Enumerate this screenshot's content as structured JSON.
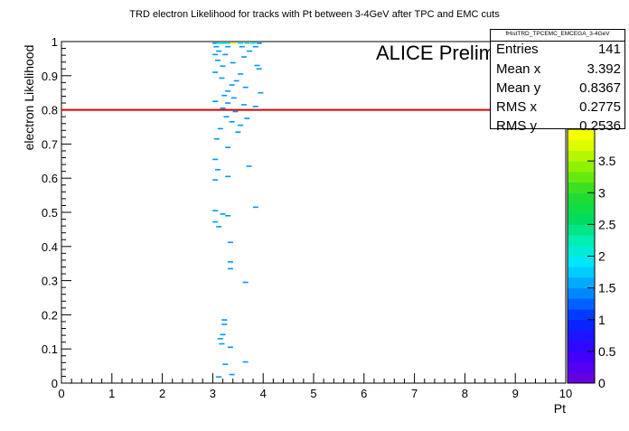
{
  "chart_data": {
    "type": "heatmap",
    "title": "TRD electron Likelihood for tracks with Pt between 3-4GeV after TPC and EMC cuts",
    "xlabel": "Pt",
    "ylabel": "electron Likelihood",
    "xlim": [
      0,
      10
    ],
    "ylim": [
      0,
      1
    ],
    "x_ticks": [
      "0",
      "1",
      "2",
      "3",
      "4",
      "5",
      "6",
      "7",
      "8",
      "9",
      "10"
    ],
    "y_ticks": [
      "0",
      "0.1",
      "0.2",
      "0.3",
      "0.4",
      "0.5",
      "0.6",
      "0.7",
      "0.8",
      "0.9",
      "1"
    ],
    "cut_line": {
      "y": 0.8,
      "color": "#e00000"
    },
    "colorbar": {
      "range": [
        0,
        4
      ],
      "ticks": [
        "0",
        "0.5",
        "1",
        "1.5",
        "2",
        "2.5",
        "3",
        "3.5"
      ]
    },
    "points": [
      {
        "x": 3.05,
        "y": 0.995,
        "c": 1
      },
      {
        "x": 3.12,
        "y": 0.995,
        "c": 2
      },
      {
        "x": 3.2,
        "y": 0.995,
        "c": 2
      },
      {
        "x": 3.3,
        "y": 0.995,
        "c": 2
      },
      {
        "x": 3.42,
        "y": 0.995,
        "c": 4
      },
      {
        "x": 3.55,
        "y": 0.995,
        "c": 2
      },
      {
        "x": 3.68,
        "y": 0.995,
        "c": 2
      },
      {
        "x": 3.8,
        "y": 0.995,
        "c": 2
      },
      {
        "x": 3.92,
        "y": 0.995,
        "c": 1
      },
      {
        "x": 3.07,
        "y": 0.985,
        "c": 1
      },
      {
        "x": 3.3,
        "y": 0.985,
        "c": 1
      },
      {
        "x": 3.58,
        "y": 0.985,
        "c": 1
      },
      {
        "x": 3.85,
        "y": 0.985,
        "c": 1
      },
      {
        "x": 3.12,
        "y": 0.972,
        "c": 1
      },
      {
        "x": 3.73,
        "y": 0.972,
        "c": 1
      },
      {
        "x": 3.05,
        "y": 0.962,
        "c": 1
      },
      {
        "x": 3.25,
        "y": 0.962,
        "c": 1
      },
      {
        "x": 3.62,
        "y": 0.955,
        "c": 1
      },
      {
        "x": 3.1,
        "y": 0.945,
        "c": 1
      },
      {
        "x": 3.4,
        "y": 0.938,
        "c": 1
      },
      {
        "x": 3.2,
        "y": 0.928,
        "c": 1
      },
      {
        "x": 3.88,
        "y": 0.93,
        "c": 1
      },
      {
        "x": 3.92,
        "y": 0.92,
        "c": 1
      },
      {
        "x": 3.05,
        "y": 0.91,
        "c": 1
      },
      {
        "x": 3.55,
        "y": 0.905,
        "c": 1
      },
      {
        "x": 3.18,
        "y": 0.893,
        "c": 1
      },
      {
        "x": 3.47,
        "y": 0.885,
        "c": 1
      },
      {
        "x": 3.38,
        "y": 0.873,
        "c": 1
      },
      {
        "x": 3.65,
        "y": 0.866,
        "c": 1
      },
      {
        "x": 3.3,
        "y": 0.855,
        "c": 1
      },
      {
        "x": 3.95,
        "y": 0.85,
        "c": 1
      },
      {
        "x": 3.23,
        "y": 0.842,
        "c": 1
      },
      {
        "x": 3.42,
        "y": 0.835,
        "c": 1
      },
      {
        "x": 3.05,
        "y": 0.825,
        "c": 1
      },
      {
        "x": 3.3,
        "y": 0.82,
        "c": 1
      },
      {
        "x": 3.62,
        "y": 0.815,
        "c": 1
      },
      {
        "x": 3.85,
        "y": 0.81,
        "c": 1
      },
      {
        "x": 3.2,
        "y": 0.805,
        "c": 1
      },
      {
        "x": 3.45,
        "y": 0.795,
        "c": 1
      },
      {
        "x": 3.27,
        "y": 0.78,
        "c": 1
      },
      {
        "x": 3.68,
        "y": 0.775,
        "c": 1
      },
      {
        "x": 3.38,
        "y": 0.765,
        "c": 1
      },
      {
        "x": 3.55,
        "y": 0.755,
        "c": 1
      },
      {
        "x": 3.15,
        "y": 0.745,
        "c": 1
      },
      {
        "x": 3.5,
        "y": 0.735,
        "c": 1
      },
      {
        "x": 3.08,
        "y": 0.715,
        "c": 1
      },
      {
        "x": 3.3,
        "y": 0.69,
        "c": 1
      },
      {
        "x": 3.05,
        "y": 0.655,
        "c": 1
      },
      {
        "x": 3.1,
        "y": 0.625,
        "c": 1
      },
      {
        "x": 3.72,
        "y": 0.635,
        "c": 1
      },
      {
        "x": 3.3,
        "y": 0.605,
        "c": 1
      },
      {
        "x": 3.05,
        "y": 0.595,
        "c": 1
      },
      {
        "x": 3.85,
        "y": 0.515,
        "c": 1
      },
      {
        "x": 3.05,
        "y": 0.505,
        "c": 1
      },
      {
        "x": 3.2,
        "y": 0.495,
        "c": 1
      },
      {
        "x": 3.3,
        "y": 0.49,
        "c": 1
      },
      {
        "x": 3.05,
        "y": 0.472,
        "c": 1
      },
      {
        "x": 3.12,
        "y": 0.458,
        "c": 1
      },
      {
        "x": 3.35,
        "y": 0.412,
        "c": 1
      },
      {
        "x": 3.35,
        "y": 0.355,
        "c": 1
      },
      {
        "x": 3.35,
        "y": 0.335,
        "c": 1
      },
      {
        "x": 3.65,
        "y": 0.295,
        "c": 1
      },
      {
        "x": 3.23,
        "y": 0.185,
        "c": 1
      },
      {
        "x": 3.23,
        "y": 0.172,
        "c": 1
      },
      {
        "x": 3.2,
        "y": 0.142,
        "c": 1
      },
      {
        "x": 3.15,
        "y": 0.13,
        "c": 1
      },
      {
        "x": 3.18,
        "y": 0.115,
        "c": 1
      },
      {
        "x": 3.35,
        "y": 0.105,
        "c": 1
      },
      {
        "x": 3.65,
        "y": 0.062,
        "c": 1
      },
      {
        "x": 3.25,
        "y": 0.055,
        "c": 1
      },
      {
        "x": 3.38,
        "y": 0.025,
        "c": 1
      },
      {
        "x": 3.12,
        "y": 0.018,
        "c": 1
      }
    ]
  },
  "stats": {
    "title": "fHistTRD_TPCEMC_EMCEGA_3-4GeV",
    "rows": [
      {
        "label": "Entries",
        "value": "141"
      },
      {
        "label": "Mean x",
        "value": "3.392"
      },
      {
        "label": "Mean y",
        "value": "0.8367"
      },
      {
        "label": "RMS x",
        "value": "0.2775"
      },
      {
        "label": "RMS y",
        "value": "0.2536"
      }
    ]
  },
  "overlay": {
    "preliminary": "ALICE Preliminary"
  }
}
